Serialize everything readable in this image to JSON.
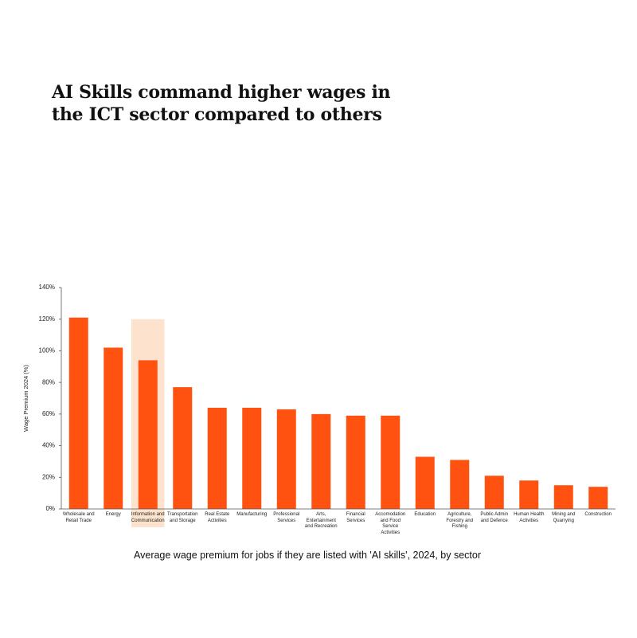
{
  "chart_data": {
    "type": "bar",
    "title": "AI Skills command higher wages in\nthe ICT sector compared to others",
    "caption": "Average wage premium for jobs if they are listed with 'AI skills', 2024, by sector",
    "y_label": "Wage Premium 2024 (%)",
    "categories": [
      "Wholesale and\nRetail Trade",
      "Energy",
      "Information and\nCommunication",
      "Transportation\nand Storage",
      "Real Estate\nActivities",
      "Manufacturing",
      "Professional\nServices",
      "Arts,\nEntertainment\nand Recreation",
      "Financial\nServices",
      "Accomodation\nand Food\nService\nActivities",
      "Education",
      "Agriculture,\nForestry and\nFishing",
      "Public Admin\nand Defence",
      "Human Health\nActivities",
      "Mining and\nQuarrying",
      "Construction"
    ],
    "values": [
      121,
      102,
      94,
      77,
      64,
      64,
      63,
      60,
      59,
      59,
      33,
      31,
      21,
      18,
      15,
      14
    ],
    "color": "#ff5110",
    "highlight_index": 2,
    "highlight_color": "#fde3cd",
    "ylim": [
      0,
      140
    ],
    "yticks": [
      {
        "value": 0,
        "label": "0%"
      },
      {
        "value": 20,
        "label": "20%"
      },
      {
        "value": 40,
        "label": "40%"
      },
      {
        "value": 60,
        "label": "60%"
      },
      {
        "value": 80,
        "label": "80%"
      },
      {
        "value": 100,
        "label": "100%"
      },
      {
        "value": 120,
        "label": "120%"
      },
      {
        "value": 140,
        "label": "140%"
      }
    ],
    "grid": false
  }
}
